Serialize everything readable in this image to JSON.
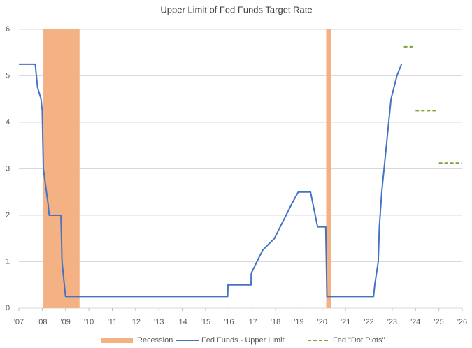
{
  "chart_data": {
    "type": "line",
    "title": "Upper Limit of Fed Funds Target Rate",
    "xlim": [
      2007,
      2026
    ],
    "ylim": [
      0,
      6
    ],
    "yticks": [
      0,
      1,
      2,
      3,
      4,
      5,
      6
    ],
    "xticks": [
      {
        "value": 2007,
        "label": "'07"
      },
      {
        "value": 2008,
        "label": "'08"
      },
      {
        "value": 2009,
        "label": "'09"
      },
      {
        "value": 2010,
        "label": "'10"
      },
      {
        "value": 2011,
        "label": "'11"
      },
      {
        "value": 2012,
        "label": "'12"
      },
      {
        "value": 2013,
        "label": "'13"
      },
      {
        "value": 2014,
        "label": "'14"
      },
      {
        "value": 2015,
        "label": "'15"
      },
      {
        "value": 2016,
        "label": "'16"
      },
      {
        "value": 2017,
        "label": "'17"
      },
      {
        "value": 2018,
        "label": "'18"
      },
      {
        "value": 2019,
        "label": "'19"
      },
      {
        "value": 2020,
        "label": "'20"
      },
      {
        "value": 2021,
        "label": "'21"
      },
      {
        "value": 2022,
        "label": "'22"
      },
      {
        "value": 2023,
        "label": "'23"
      },
      {
        "value": 2024,
        "label": "'24"
      },
      {
        "value": 2025,
        "label": "'25"
      },
      {
        "value": 2026,
        "label": "'26"
      }
    ],
    "grid": true,
    "recessions": {
      "name": "Recession",
      "color": "#f4b183",
      "spans": [
        [
          2008.05,
          2009.6
        ],
        [
          2020.17,
          2020.38
        ]
      ]
    },
    "series": [
      {
        "name": "Fed Funds - Upper Limit",
        "color": "#4472c4",
        "dashed": false,
        "x": [
          2007.0,
          2007.7,
          2007.8,
          2007.95,
          2008.0,
          2008.05,
          2008.25,
          2008.3,
          2008.8,
          2008.85,
          2009.0,
          2015.95,
          2015.96,
          2016.95,
          2016.96,
          2017.2,
          2017.45,
          2017.95,
          2018.2,
          2018.45,
          2018.7,
          2018.97,
          2019.5,
          2019.6,
          2019.7,
          2019.8,
          2020.15,
          2020.2,
          2022.2,
          2022.25,
          2022.4,
          2022.45,
          2022.55,
          2022.7,
          2022.85,
          2022.95,
          2023.2,
          2023.4
        ],
        "values": [
          5.25,
          5.25,
          4.75,
          4.5,
          4.25,
          3.0,
          2.25,
          2.0,
          2.0,
          1.0,
          0.25,
          0.25,
          0.5,
          0.5,
          0.75,
          1.0,
          1.25,
          1.5,
          1.75,
          2.0,
          2.25,
          2.5,
          2.5,
          2.25,
          2.0,
          1.75,
          1.75,
          0.25,
          0.25,
          0.5,
          1.0,
          1.75,
          2.5,
          3.25,
          4.0,
          4.5,
          5.0,
          5.25
        ]
      },
      {
        "name": "Fed \"Dot Plots\"",
        "color": "#7aa332",
        "dashed": true,
        "x": [
          2023.5,
          2023.95,
          2024.0,
          2024.0,
          2024.95,
          2025.0,
          2025.0,
          2026.0
        ],
        "values": [
          5.625,
          5.625,
          null,
          4.25,
          4.25,
          null,
          3.125,
          3.125
        ]
      }
    ]
  }
}
